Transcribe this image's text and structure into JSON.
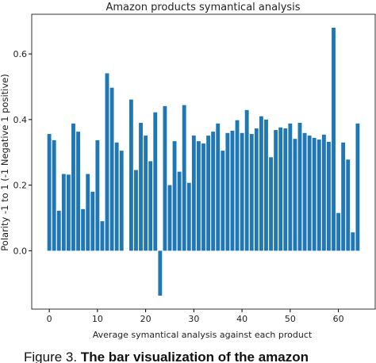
{
  "chart_data": {
    "type": "bar",
    "title": "Amazon products symantical analysis",
    "xlabel": "Average symantical analysis against each product",
    "ylabel": "Polarity -1 to 1 (-1 Negative 1 positive)",
    "x": [
      0,
      1,
      2,
      3,
      4,
      5,
      6,
      7,
      8,
      9,
      10,
      11,
      12,
      13,
      14,
      15,
      16,
      17,
      18,
      19,
      20,
      21,
      22,
      23,
      24,
      25,
      26,
      27,
      28,
      29,
      30,
      31,
      32,
      33,
      34,
      35,
      36,
      37,
      38,
      39,
      40,
      41,
      42,
      43,
      44,
      45,
      46,
      47,
      48,
      49,
      50,
      51,
      52,
      53,
      54,
      55,
      56,
      57,
      58,
      59,
      60,
      61,
      62,
      63,
      64
    ],
    "values": [
      0.356,
      0.337,
      0.122,
      0.234,
      0.232,
      0.388,
      0.363,
      0.127,
      0.234,
      0.18,
      0.337,
      0.09,
      0.541,
      0.497,
      0.33,
      0.305,
      0,
      0.461,
      0.246,
      0.39,
      0.351,
      0.273,
      0.422,
      -0.137,
      0.441,
      0.2,
      0.334,
      0.241,
      0.444,
      0.207,
      0.351,
      0.334,
      0.327,
      0.351,
      0.363,
      0.388,
      0.305,
      0.359,
      0.366,
      0.398,
      0.359,
      0.429,
      0.356,
      0.373,
      0.41,
      0.4,
      0.285,
      0.368,
      0.376,
      0.373,
      0.388,
      0.341,
      0.39,
      0.359,
      0.351,
      0.344,
      0.339,
      0.354,
      0.332,
      0.68,
      0.115,
      0.33,
      0.278,
      0.056,
      0.388
    ],
    "color": "#1f77b4",
    "xlim": [
      -3.64,
      67.64
    ],
    "xticks": [
      0,
      10,
      20,
      30,
      40,
      50,
      60
    ],
    "ylim": [
      -0.178,
      0.721
    ],
    "yticks": [
      {
        "value": 0,
        "label": "0.0"
      },
      {
        "value": 0.2,
        "label": "0.2"
      },
      {
        "value": 0.4,
        "label": "0.4"
      },
      {
        "value": 0.6,
        "label": "0.6"
      }
    ],
    "bar_width": 0.8
  },
  "caption": {
    "label": "Figure 3.",
    "text": "The bar visualization of the amazon"
  }
}
